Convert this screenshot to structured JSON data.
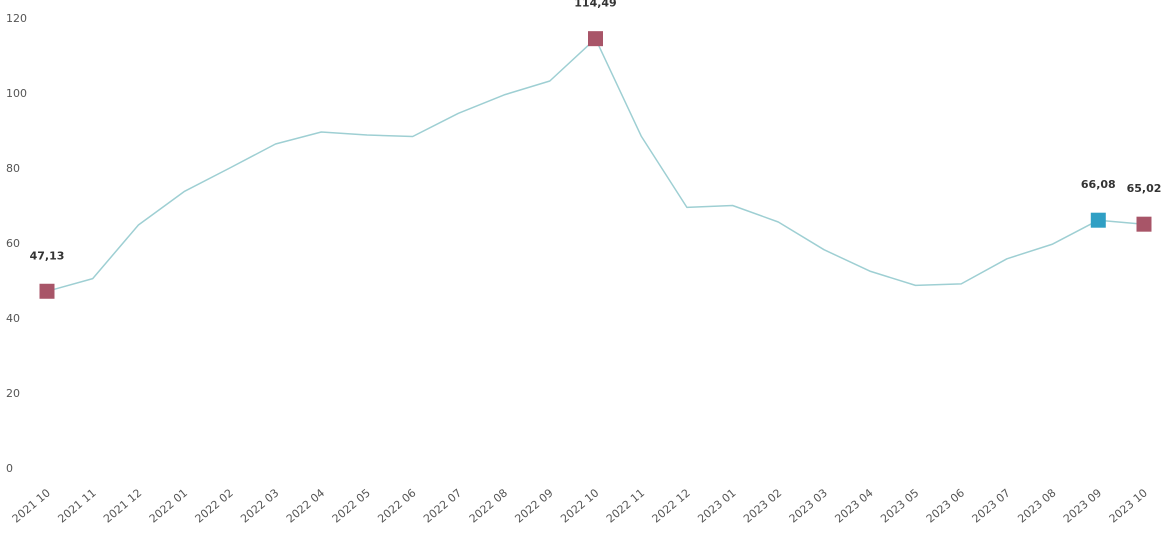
{
  "chart_data": {
    "type": "line",
    "categories": [
      "2021 10",
      "2021 11",
      "2021 12",
      "2022 01",
      "2022 02",
      "2022 03",
      "2022 04",
      "2022 05",
      "2022 06",
      "2022 07",
      "2022 08",
      "2022 09",
      "2022 10",
      "2022 11",
      "2022 12",
      "2023 01",
      "2023 02",
      "2023 03",
      "2023 04",
      "2023 05",
      "2023 06",
      "2023 07",
      "2023 08",
      "2023 09",
      "2023 10"
    ],
    "series": [
      {
        "values": [
          47.13,
          50.5,
          64.8,
          73.7,
          80.0,
          86.4,
          89.6,
          88.8,
          88.4,
          94.6,
          99.5,
          103.2,
          114.49,
          88.5,
          69.5,
          70.0,
          65.6,
          58.2,
          52.5,
          48.7,
          49.1,
          55.8,
          59.7,
          66.08,
          65.02
        ],
        "color": "#9ecfd3"
      }
    ],
    "yticks": [
      0,
      20,
      40,
      60,
      80,
      100,
      120
    ],
    "ylim": [
      0,
      120
    ],
    "grid": false,
    "highlighted": [
      {
        "category": "2021 10",
        "label": "47,13",
        "color": "#a85568"
      },
      {
        "category": "2022 10",
        "label": "114,49",
        "color": "#a85568"
      },
      {
        "category": "2023 09",
        "label": "66,08",
        "color": "#2f9fc4"
      },
      {
        "category": "2023 10",
        "label": "65,02",
        "color": "#a85568"
      }
    ]
  }
}
